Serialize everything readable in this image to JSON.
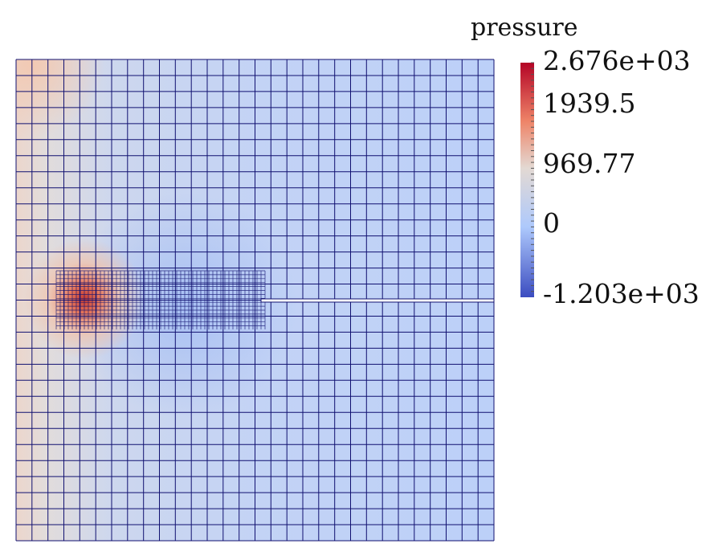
{
  "colorbar": {
    "title": "pressure",
    "labels": [
      "2.676e+03",
      "1939.5",
      "969.77",
      "0",
      "-1.203e+03"
    ]
  }
}
